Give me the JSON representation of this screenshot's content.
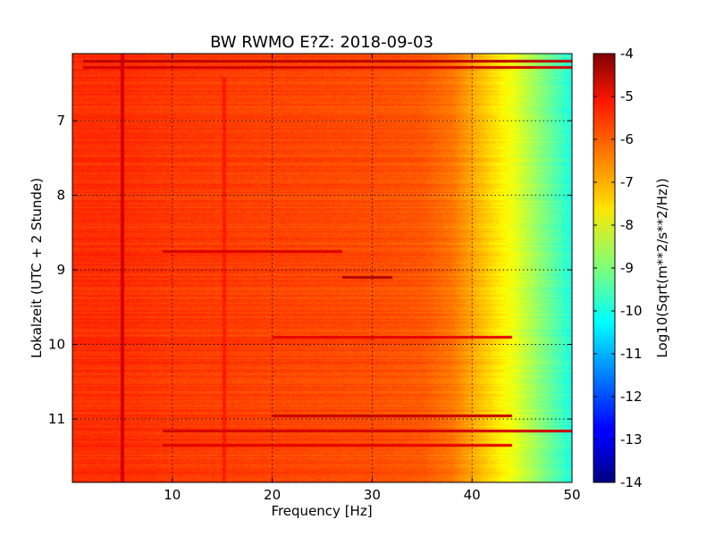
{
  "chart_data": {
    "type": "heatmap",
    "title": "BW RWMO E?Z: 2018-09-03",
    "xlabel": "Frequency [Hz]",
    "ylabel": "Lokalzeit (UTC + 2 Stunde)",
    "xlim": [
      0,
      50
    ],
    "ylim": [
      6.1,
      11.85
    ],
    "y_inverted": true,
    "x_ticks": [
      "10",
      "20",
      "30",
      "40",
      "50"
    ],
    "x_tick_values": [
      10,
      20,
      30,
      40,
      50
    ],
    "y_ticks": [
      "7",
      "8",
      "9",
      "10",
      "11"
    ],
    "y_tick_values": [
      7,
      8,
      9,
      10,
      11
    ],
    "grid": true,
    "colormap": "jet",
    "colorbar": {
      "label": "Log10(Sqrt(m**2/s**2/Hz))",
      "range": [
        -14,
        -4
      ],
      "ticks": [
        "-4",
        "-5",
        "-6",
        "-7",
        "-8",
        "-9",
        "-10",
        "-11",
        "-12",
        "-13",
        "-14"
      ],
      "tick_values": [
        -4,
        -5,
        -6,
        -7,
        -8,
        -9,
        -10,
        -11,
        -12,
        -13,
        -14
      ]
    },
    "spectrum_profile": {
      "frequency_hz": [
        0,
        5,
        10,
        20,
        30,
        35,
        38,
        40,
        42,
        44,
        46,
        48,
        50
      ],
      "log10_amplitude": [
        -5.7,
        -5.7,
        -5.8,
        -5.9,
        -6.0,
        -6.1,
        -6.4,
        -6.9,
        -7.4,
        -7.9,
        -8.6,
        -9.3,
        -10.0
      ]
    },
    "features": [
      {
        "type": "line",
        "freq_hz": 5.0,
        "from_h": 6.1,
        "to_h": 11.85,
        "level": -4.8
      },
      {
        "type": "line",
        "freq_hz": 15.2,
        "from_h": 6.4,
        "to_h": 11.85,
        "level": -5.5
      },
      {
        "type": "band",
        "time_h": 6.2,
        "from_hz": 1,
        "to_hz": 50,
        "level": -4.6
      },
      {
        "type": "band",
        "time_h": 6.28,
        "from_hz": 1,
        "to_hz": 50,
        "level": -4.8
      },
      {
        "type": "band",
        "time_h": 8.75,
        "from_hz": 9,
        "to_hz": 27,
        "level": -4.9
      },
      {
        "type": "band",
        "time_h": 9.09,
        "from_hz": 27,
        "to_hz": 32,
        "level": -4.5
      },
      {
        "type": "band",
        "time_h": 9.9,
        "from_hz": 20,
        "to_hz": 44,
        "level": -5.0
      },
      {
        "type": "band",
        "time_h": 10.95,
        "from_hz": 20,
        "to_hz": 44,
        "level": -4.7
      },
      {
        "type": "band",
        "time_h": 11.15,
        "from_hz": 9,
        "to_hz": 50,
        "level": -4.8
      },
      {
        "type": "band",
        "time_h": 11.35,
        "from_hz": 9,
        "to_hz": 44,
        "level": -5.0
      }
    ]
  }
}
